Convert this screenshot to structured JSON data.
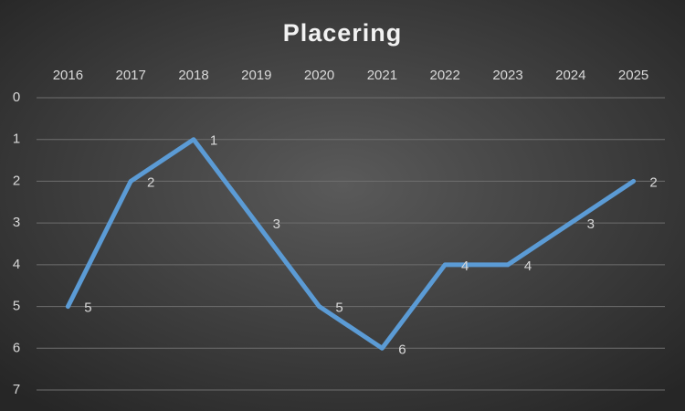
{
  "chart_data": {
    "type": "line",
    "title": "Placering",
    "categories": [
      "2016",
      "2017",
      "2018",
      "2019",
      "2020",
      "2021",
      "2022",
      "2023",
      "2024",
      "2025"
    ],
    "series": [
      {
        "name": "Placering",
        "color": "#5b9bd5",
        "values": [
          5,
          2,
          1,
          3,
          5,
          6,
          4,
          4,
          3,
          2
        ]
      }
    ],
    "ylim": [
      0,
      7
    ],
    "yticks": [
      0,
      1,
      2,
      3,
      4,
      5,
      6,
      7
    ],
    "y_inverted": true,
    "x_axis_position": "top",
    "grid": true,
    "data_labels": true
  }
}
